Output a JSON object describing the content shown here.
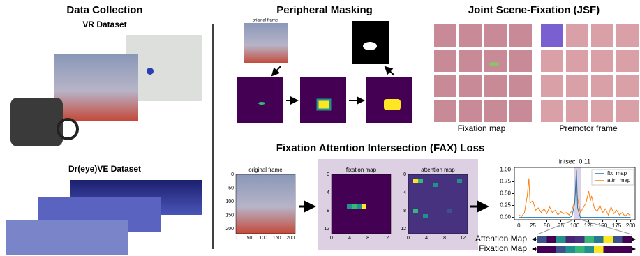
{
  "data_collection": {
    "title": "Data Collection",
    "vr_label": "VR Dataset",
    "dreye_label": "Dr(eye)VE Dataset"
  },
  "peripheral_masking": {
    "title": "Peripheral Masking",
    "frame_title": "original frame"
  },
  "jsf": {
    "title": "Joint Scene-Fixation (JSF)",
    "left_label": "Fixation map",
    "right_label": "Premotor frame"
  },
  "fax": {
    "title": "Fixation Attention Intersection (FAX) Loss",
    "frame_panel": {
      "title": "original frame",
      "xticks": [
        0,
        50,
        100,
        150,
        200
      ],
      "yticks": [
        0,
        50,
        100,
        150,
        200
      ]
    },
    "fixation_panel": {
      "title": "fixation map",
      "xticks": [
        0,
        4,
        8,
        12
      ],
      "yticks": [
        0,
        4,
        8,
        12
      ]
    },
    "attention_panel": {
      "title": "attention map",
      "xticks": [
        0,
        4,
        8,
        12
      ],
      "yticks": [
        0,
        4,
        8,
        12
      ]
    },
    "bar_labels": [
      "Attention Map",
      "Fixation Map"
    ]
  },
  "chart_data": {
    "type": "line",
    "title": "intsec: 0.11",
    "x": [
      0,
      5,
      10,
      15,
      18,
      20,
      25,
      30,
      35,
      40,
      45,
      50,
      55,
      60,
      65,
      70,
      75,
      80,
      85,
      90,
      95,
      100,
      103,
      105,
      110,
      115,
      120,
      125,
      128,
      130,
      135,
      140,
      145,
      150,
      155,
      160,
      165,
      170,
      175,
      180,
      185,
      190,
      195,
      200
    ],
    "series": [
      {
        "name": "fix_map",
        "color": "#1f77b4",
        "values": [
          0,
          0,
          0,
          0,
          0,
          0,
          0,
          0,
          0,
          0,
          0,
          0,
          0,
          0,
          0,
          0,
          0,
          0,
          0,
          0,
          0.02,
          0.3,
          1.0,
          0.2,
          0,
          0,
          0,
          0,
          0,
          0,
          0,
          0,
          0,
          0,
          0,
          0,
          0,
          0,
          0,
          0,
          0,
          0,
          0,
          0
        ]
      },
      {
        "name": "attn_map",
        "color": "#ff7f0e",
        "values": [
          0.05,
          0.02,
          0.1,
          0.45,
          0.82,
          0.3,
          0.35,
          0.15,
          0.2,
          0.1,
          0.18,
          0.08,
          0.22,
          0.1,
          0.15,
          0.05,
          0.12,
          0.08,
          0.1,
          0.05,
          0.15,
          0.35,
          0.72,
          0.4,
          0.1,
          0.2,
          0.3,
          0.55,
          0.35,
          0.45,
          0.2,
          0.12,
          0.25,
          0.1,
          0.18,
          0.05,
          0.22,
          0.08,
          0.15,
          0.05,
          0.1,
          0.02,
          0.08,
          0.03
        ]
      }
    ],
    "xlim": [
      -8,
      208
    ],
    "ylim": [
      -0.05,
      1.05
    ],
    "xticks": [
      0,
      25,
      50,
      75,
      100,
      125,
      150,
      175,
      200
    ],
    "yticks": [
      {
        "value": 0,
        "label": "0.00"
      },
      {
        "value": 0.25,
        "label": "0.25"
      },
      {
        "value": 0.5,
        "label": "0.50"
      },
      {
        "value": 0.75,
        "label": "0.75"
      },
      {
        "value": 1,
        "label": "1.00"
      }
    ]
  }
}
